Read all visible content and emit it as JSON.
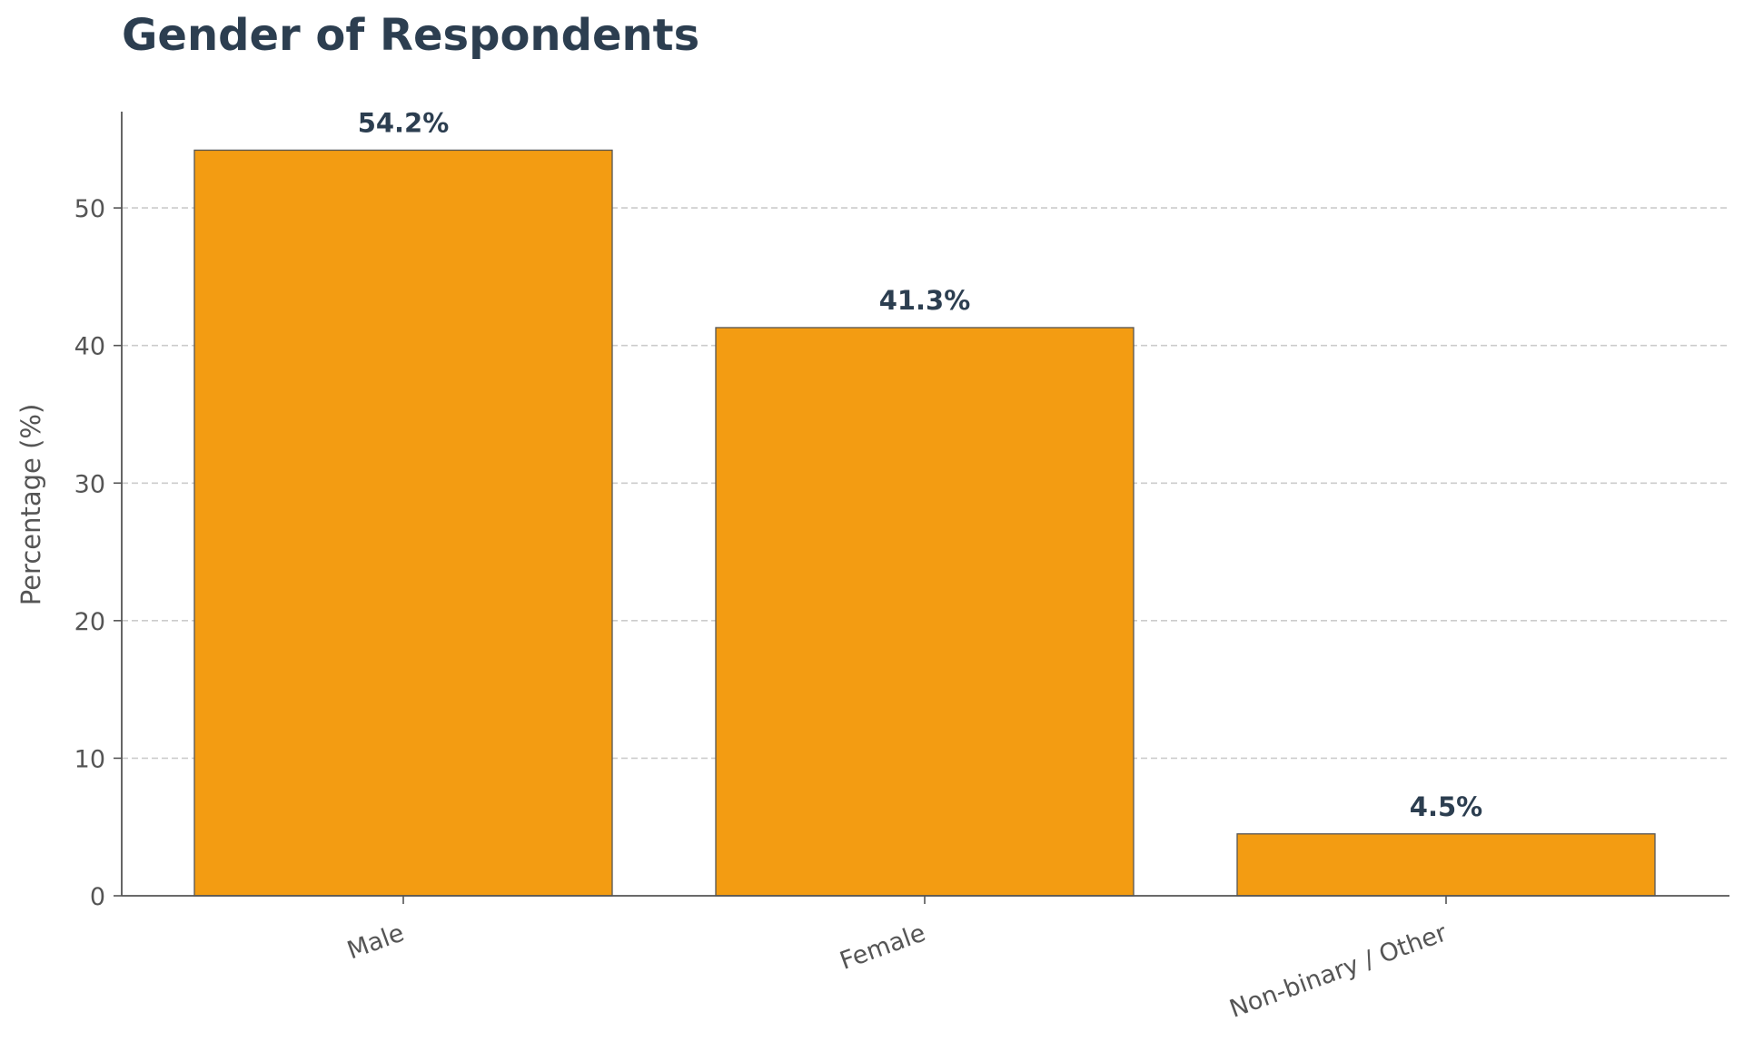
{
  "chart_data": {
    "type": "bar",
    "title": "Gender of Respondents",
    "xlabel": "",
    "ylabel": "Percentage (%)",
    "categories": [
      "Male",
      "Female",
      "Non-binary / Other"
    ],
    "values": [
      54.2,
      41.3,
      4.5
    ],
    "data_labels": [
      "54.2%",
      "41.3%",
      "4.5%"
    ],
    "ylim": [
      0,
      57
    ],
    "yticks": [
      0,
      10,
      20,
      30,
      40,
      50
    ],
    "grid": true,
    "grid_axis": "y",
    "grid_style": "dashed",
    "legend": "none",
    "colors": {
      "bar": "#f39c12",
      "bar_edge": "#555555",
      "title": "#2c3e50",
      "data_label": "#2c3e50",
      "axis_text": "#555555",
      "axis_line": "#555555",
      "grid": "#cccccc"
    }
  }
}
